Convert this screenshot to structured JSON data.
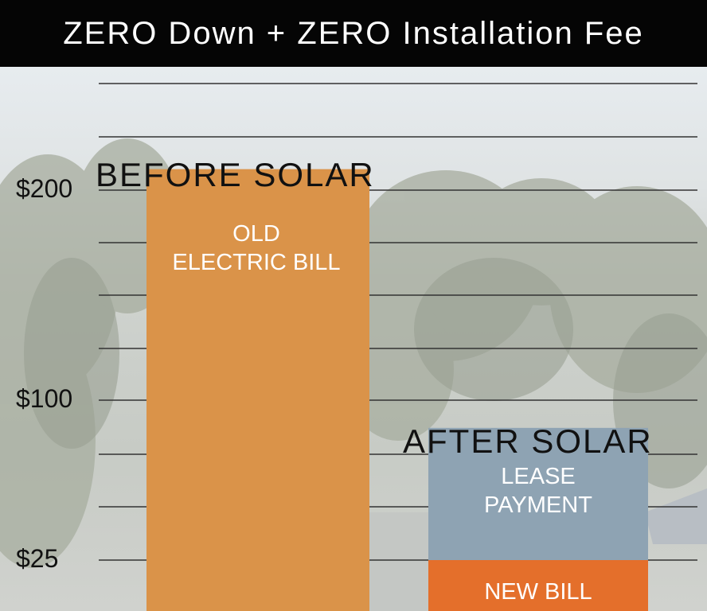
{
  "header": {
    "title": "ZERO Down + ZERO Installation Fee"
  },
  "colors": {
    "header_bg": "#050505",
    "old_bill": "#da9349",
    "lease_payment": "#8ea3b3",
    "new_bill": "#e46f2b",
    "gridline": "#333333"
  },
  "chart_data": {
    "type": "bar",
    "title": "",
    "xlabel": "",
    "ylabel": "",
    "categories": [
      "BEFORE SOLAR",
      "AFTER SOLAR"
    ],
    "y_ticks": [
      {
        "value": 200,
        "label": "$200"
      },
      {
        "value": 100,
        "label": "$100"
      },
      {
        "value": 25,
        "label": "$25"
      }
    ],
    "series": [
      {
        "name": "OLD ELECTRIC BILL",
        "stack": "BEFORE SOLAR",
        "bottom": 0,
        "value": 210
      },
      {
        "name": "NEW BILL",
        "stack": "AFTER SOLAR",
        "bottom": 0,
        "value": 25
      },
      {
        "name": "LEASE PAYMENT",
        "stack": "AFTER SOLAR",
        "bottom": 25,
        "value": 62
      }
    ],
    "bar_labels": {
      "old_line1": "OLD",
      "old_line2": "ELECTRIC BILL",
      "lease_line1": "LEASE",
      "lease_line2": "PAYMENT",
      "new_bill": "NEW BILL"
    },
    "grid": true,
    "legend": "none"
  }
}
